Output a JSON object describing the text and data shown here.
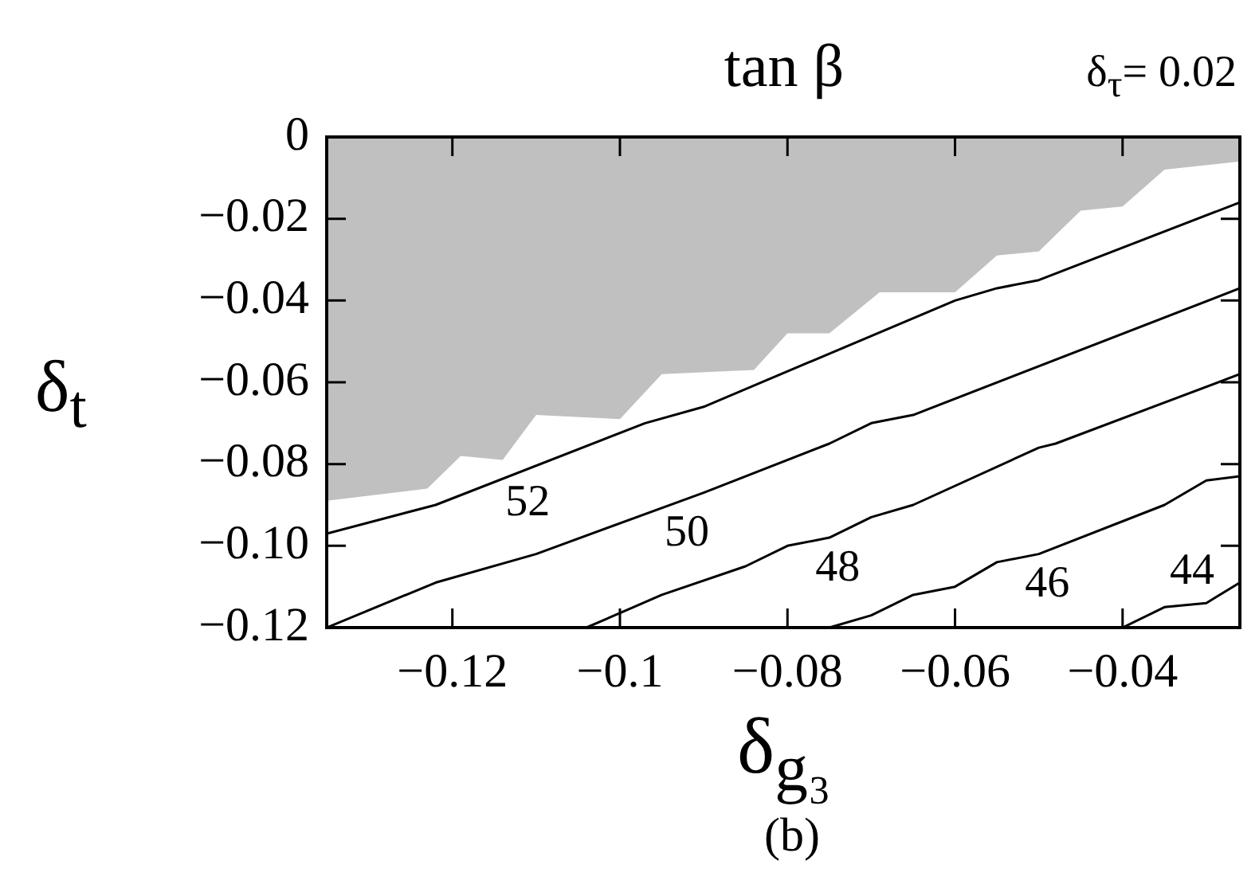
{
  "chart_data": {
    "type": "line",
    "title": "tan β",
    "xlabel": "δ$_{g₃}$",
    "ylabel": "δ$_{t}$",
    "xlim": [
      -0.135,
      -0.026
    ],
    "ylim": [
      -0.12,
      0
    ],
    "xticks": [
      {
        "value": -0.12,
        "label": "−0.12"
      },
      {
        "value": -0.1,
        "label": "−0.1"
      },
      {
        "value": -0.08,
        "label": "−0.08"
      },
      {
        "value": -0.06,
        "label": "−0.06"
      },
      {
        "value": -0.04,
        "label": "−0.04"
      }
    ],
    "yticks": [
      0,
      {
        "value": -0.02,
        "label": "−0.02"
      },
      {
        "value": -0.04,
        "label": "−0.04"
      },
      {
        "value": -0.06,
        "label": "−0.06"
      },
      {
        "value": -0.08,
        "label": "−0.08"
      },
      {
        "value": -0.1,
        "label": "−0.10"
      },
      {
        "value": -0.12,
        "label": "−0.12"
      }
    ],
    "series": [
      {
        "type": "area",
        "color": "#c0c0c0",
        "x": [
          -0.135,
          -0.123,
          -0.119,
          -0.114,
          -0.11,
          -0.1,
          -0.095,
          -0.084,
          -0.08,
          -0.075,
          -0.069,
          -0.06,
          -0.055,
          -0.05,
          -0.045,
          -0.04,
          -0.035,
          -0.026
        ],
        "values": [
          -0.089,
          -0.086,
          -0.078,
          -0.079,
          -0.068,
          -0.069,
          -0.058,
          -0.057,
          -0.048,
          -0.048,
          -0.038,
          -0.038,
          -0.029,
          -0.028,
          -0.018,
          -0.017,
          -0.008,
          -0.006
        ]
      },
      {
        "color": "#000000",
        "x": [
          -0.135,
          -0.122,
          -0.097,
          -0.09,
          -0.06,
          -0.055,
          -0.05,
          -0.026
        ],
        "values": [
          -0.097,
          -0.09,
          -0.07,
          -0.066,
          -0.04,
          -0.037,
          -0.035,
          -0.016
        ]
      },
      {
        "color": "#000000",
        "x": [
          -0.135,
          -0.122,
          -0.11,
          -0.09,
          -0.075,
          -0.07,
          -0.065,
          -0.026
        ],
        "values": [
          -0.12,
          -0.109,
          -0.102,
          -0.087,
          -0.075,
          -0.07,
          -0.068,
          -0.037
        ]
      },
      {
        "color": "#000000",
        "x": [
          -0.104,
          -0.095,
          -0.085,
          -0.08,
          -0.075,
          -0.07,
          -0.065,
          -0.05,
          -0.048,
          -0.026
        ],
        "values": [
          -0.12,
          -0.112,
          -0.105,
          -0.1,
          -0.098,
          -0.093,
          -0.09,
          -0.076,
          -0.075,
          -0.058
        ]
      },
      {
        "color": "#000000",
        "x": [
          -0.075,
          -0.07,
          -0.065,
          -0.06,
          -0.055,
          -0.05,
          -0.035,
          -0.03,
          -0.026
        ],
        "values": [
          -0.12,
          -0.117,
          -0.112,
          -0.11,
          -0.104,
          -0.102,
          -0.09,
          -0.084,
          -0.083
        ]
      },
      {
        "color": "#000000",
        "x": [
          -0.04,
          -0.035,
          -0.03,
          -0.026
        ],
        "values": [
          -0.12,
          -0.115,
          -0.114,
          -0.109
        ]
      }
    ],
    "annotations": [
      "δ$_{τ}$= 0.02",
      "(b)",
      {
        "text": "52",
        "x": -0.111,
        "y": -0.081
      },
      {
        "text": "50",
        "x": -0.092,
        "y": -0.0885
      },
      {
        "text": "48",
        "x": -0.074,
        "y": -0.097
      },
      {
        "text": "46",
        "x": -0.049,
        "y": -0.101
      },
      {
        "text": "44",
        "x": -0.034,
        "y": -0.115
      }
    ]
  }
}
